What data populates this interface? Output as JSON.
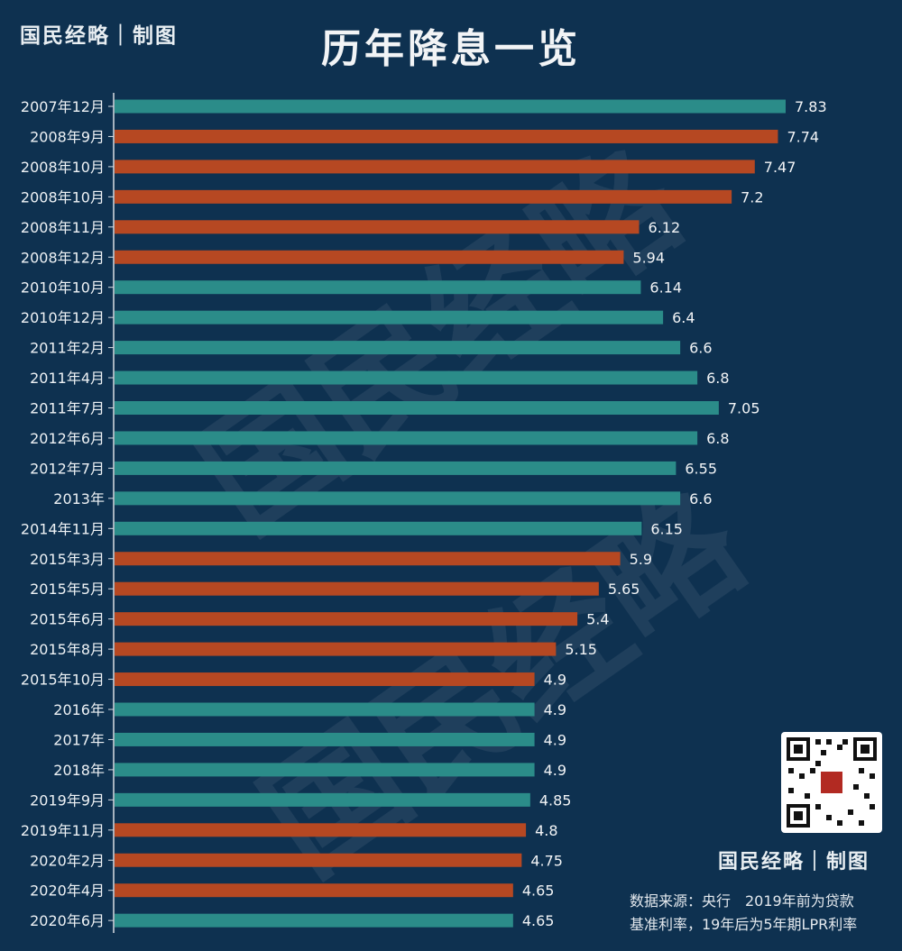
{
  "header": {
    "brand": "国民经略｜制图",
    "title": "历年降息一览"
  },
  "watermark": "国民经略",
  "footer": {
    "brand": "国民经略｜制图",
    "source_line1": "数据来源：央行　2019年前为贷款",
    "source_line2": "基准利率，19年后为5年期LPR利率",
    "qr_label": "国民经略"
  },
  "colors": {
    "background": "#0e3150",
    "teal": "#2b8c89",
    "orange": "#b64822",
    "axis": "#d8dde2"
  },
  "chart_data": {
    "type": "bar",
    "orientation": "horizontal",
    "title": "历年降息一览",
    "xlabel": "",
    "ylabel": "",
    "xlim": [
      0,
      7.83
    ],
    "categories": [
      "2007年12月",
      "2008年9月",
      "2008年10月",
      "2008年10月",
      "2008年11月",
      "2008年12月",
      "2010年10月",
      "2010年12月",
      "2011年2月",
      "2011年4月",
      "2011年7月",
      "2012年6月",
      "2012年7月",
      "2013年",
      "2014年11月",
      "2015年3月",
      "2015年5月",
      "2015年6月",
      "2015年8月",
      "2015年10月",
      "2016年",
      "2017年",
      "2018年",
      "2019年9月",
      "2019年11月",
      "2020年2月",
      "2020年4月",
      "2020年6月"
    ],
    "values": [
      7.83,
      7.74,
      7.47,
      7.2,
      6.12,
      5.94,
      6.14,
      6.4,
      6.6,
      6.8,
      7.05,
      6.8,
      6.55,
      6.6,
      6.15,
      5.9,
      5.65,
      5.4,
      5.15,
      4.9,
      4.9,
      4.9,
      4.9,
      4.85,
      4.8,
      4.75,
      4.65,
      4.65
    ],
    "labels": [
      "7.83",
      "7.74",
      "7.47",
      "7.2",
      "6.12",
      "5.94",
      "6.14",
      "6.4",
      "6.6",
      "6.8",
      "7.05",
      "6.8",
      "6.55",
      "6.6",
      "6.15",
      "5.9",
      "5.65",
      "5.4",
      "5.15",
      "4.9",
      "4.9",
      "4.9",
      "4.9",
      "4.85",
      "4.8",
      "4.75",
      "4.65",
      "4.65"
    ],
    "colors": [
      "teal",
      "orange",
      "orange",
      "orange",
      "orange",
      "orange",
      "teal",
      "teal",
      "teal",
      "teal",
      "teal",
      "teal",
      "teal",
      "teal",
      "teal",
      "orange",
      "orange",
      "orange",
      "orange",
      "orange",
      "teal",
      "teal",
      "teal",
      "teal",
      "orange",
      "orange",
      "orange",
      "teal"
    ]
  }
}
